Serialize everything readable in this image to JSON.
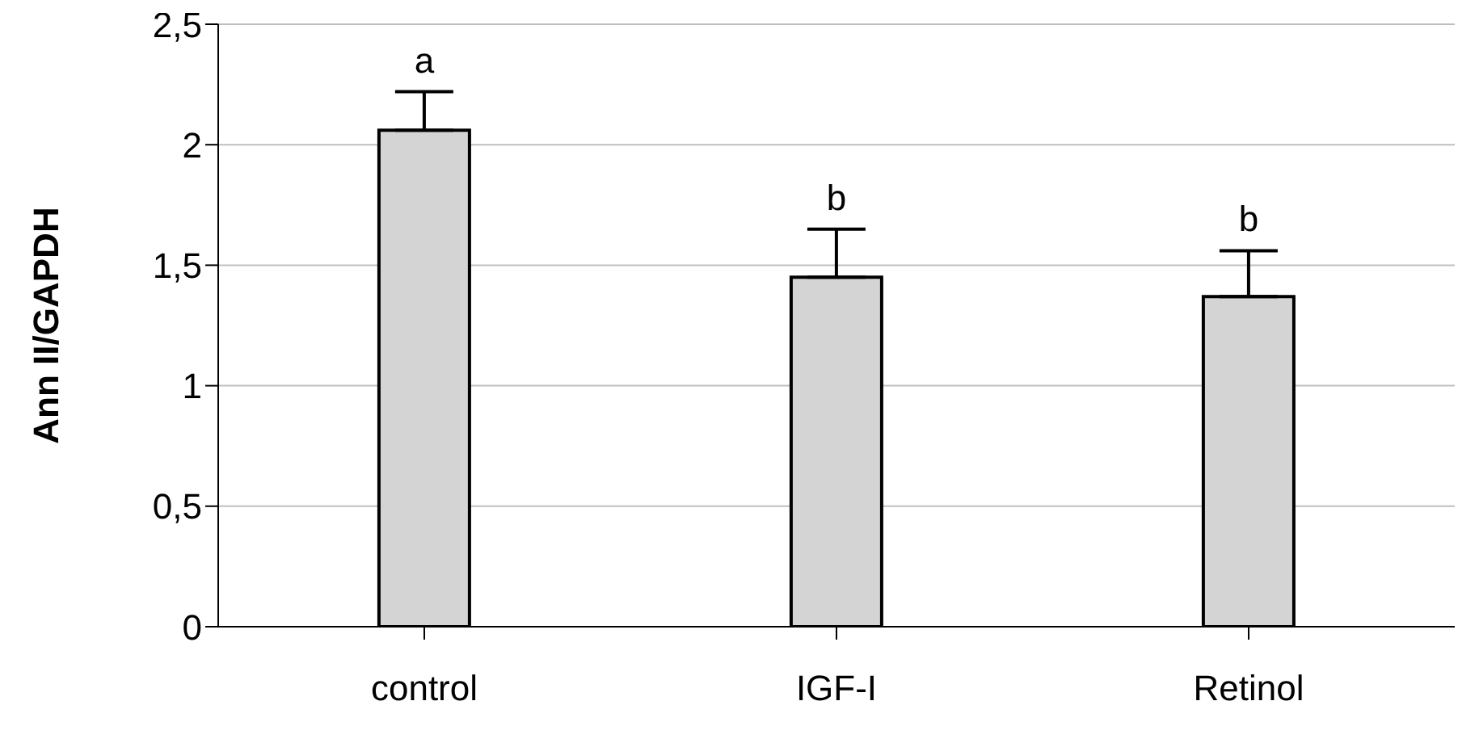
{
  "chart_data": {
    "type": "bar",
    "ylabel": "Ann II/GAPDH",
    "categories": [
      "control",
      "IGF-I",
      "Retinol"
    ],
    "values": [
      2.06,
      1.45,
      1.37
    ],
    "color": "#d4d4d4",
    "errors": [
      [
        2.06,
        2.22
      ],
      [
        1.45,
        1.65
      ],
      [
        1.37,
        1.56
      ]
    ],
    "ylim": [
      0,
      2.5
    ],
    "yticks": [
      0,
      {
        "value": 0.5,
        "label": "0,5"
      },
      1,
      {
        "value": 1.5,
        "label": "1,5"
      },
      2,
      {
        "value": 2.5,
        "label": "2,5"
      }
    ],
    "grid": "y",
    "legend": false,
    "annotations": [
      {
        "text": "a",
        "x": "control",
        "y": 2.22
      },
      {
        "text": "b",
        "x": "IGF-I",
        "y": 1.65
      },
      {
        "text": "b",
        "x": "Retinol",
        "y": 1.56
      }
    ]
  }
}
